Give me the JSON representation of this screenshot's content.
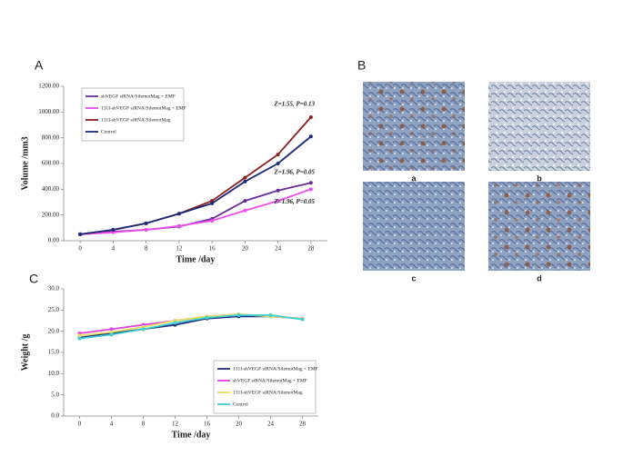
{
  "panel_labels": [
    "A",
    "B",
    "C"
  ],
  "image_captions": [
    "a",
    "b",
    "c",
    "d"
  ],
  "chart_data": [
    {
      "type": "line",
      "x_label": "Time /day",
      "y_label": "Volume /mm3",
      "x": [
        0,
        4,
        8,
        12,
        16,
        20,
        24,
        28
      ],
      "xlim": [
        -2,
        30
      ],
      "xticks": [
        0,
        4,
        8,
        12,
        16,
        20,
        24,
        28
      ],
      "ylim": [
        0,
        1200
      ],
      "yticks": [
        {
          "value": 0,
          "label": "0.00"
        },
        {
          "value": 200,
          "label": "200.00"
        },
        {
          "value": 400,
          "label": "400.00"
        },
        {
          "value": 600,
          "label": "600.00"
        },
        {
          "value": 800,
          "label": "800.00"
        },
        {
          "value": 1000,
          "label": "1000.00"
        },
        {
          "value": 1200,
          "label": "1200.00"
        }
      ],
      "legend": "upper left",
      "series": [
        {
          "name": "shVEGF siRNA/SilemotMag + EMF",
          "color": "#6a2c9a",
          "values": [
            50,
            70,
            85,
            110,
            170,
            310,
            390,
            450
          ]
        },
        {
          "name": "131I-shVEGF siRNA/SilemotMag + EMF",
          "color": "#f04cf0",
          "values": [
            50,
            65,
            85,
            115,
            155,
            235,
            310,
            400
          ]
        },
        {
          "name": "131I-shVEGF siRNA/SilemotMag",
          "color": "#8b1f1f",
          "values": [
            50,
            85,
            135,
            210,
            310,
            490,
            670,
            960
          ]
        },
        {
          "name": "Control",
          "color": "#1c2a7a",
          "values": [
            50,
            85,
            135,
            210,
            290,
            460,
            600,
            810
          ]
        }
      ],
      "annotations": [
        {
          "text": "Z=1.55,  P=0.13",
          "x": 26,
          "y": 1060
        },
        {
          "text": "Z=1.96,  P=0.05",
          "x": 26,
          "y": 530
        },
        {
          "text": "Z=1.96,  P=0.05",
          "x": 26,
          "y": 300
        }
      ]
    },
    {
      "type": "line",
      "x_label": "Time /day",
      "y_label": "Weight /g",
      "x": [
        0,
        4,
        8,
        12,
        16,
        20,
        24,
        28
      ],
      "xlim": [
        -2,
        30
      ],
      "xticks": [
        0,
        4,
        8,
        12,
        16,
        20,
        24,
        28
      ],
      "ylim": [
        0,
        30
      ],
      "yticks": [
        {
          "value": 0,
          "label": "0.0"
        },
        {
          "value": 5,
          "label": "5.0"
        },
        {
          "value": 10,
          "label": "10.0"
        },
        {
          "value": 15,
          "label": "15.0"
        },
        {
          "value": 20,
          "label": "20.0"
        },
        {
          "value": 25,
          "label": "25.0"
        },
        {
          "value": 30,
          "label": "30.0"
        }
      ],
      "legend": "lower right",
      "series": [
        {
          "name": "131I-shVEGF siRNA/SilemotMag + EMF",
          "color": "#1c2a7a",
          "values": [
            18.5,
            19.5,
            20.5,
            21.5,
            23,
            23.5,
            23.5,
            23
          ]
        },
        {
          "name": "shVEGF siRNA/SilemotMag + EMF",
          "color": "#e040e0",
          "values": [
            19.5,
            20.5,
            21.5,
            22.5,
            23.5,
            24,
            23.5,
            23
          ]
        },
        {
          "name": "131I-shVEGF siRNA/SilemotMag",
          "color": "#e8e060",
          "values": [
            19,
            19.8,
            21,
            22.5,
            23.5,
            24,
            23.5,
            23
          ]
        },
        {
          "name": "Control",
          "color": "#40d0d0",
          "values": [
            18.3,
            19.2,
            20.5,
            22,
            23.2,
            23.8,
            23.8,
            22.8
          ]
        }
      ]
    }
  ]
}
